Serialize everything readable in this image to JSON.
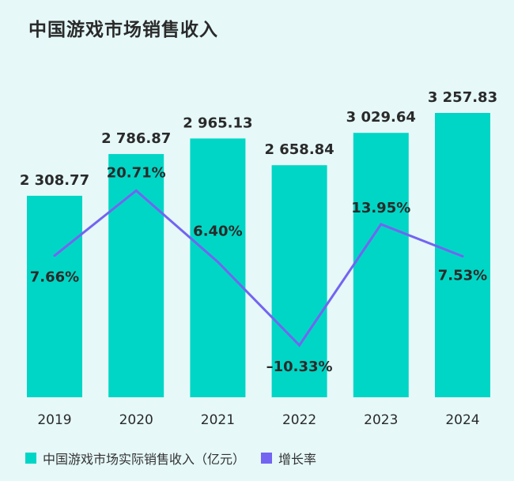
{
  "chart_data": {
    "type": "bar+line",
    "title": "中国游戏市场销售收入",
    "categories": [
      "2019",
      "2020",
      "2021",
      "2022",
      "2023",
      "2024"
    ],
    "series": [
      {
        "name": "中国游戏市场实际销售收入（亿元）",
        "type": "bar",
        "values": [
          2308.77,
          2786.87,
          2965.13,
          2658.84,
          3029.64,
          3257.83
        ],
        "labels": [
          "2 308.77",
          "2 786.87",
          "2 965.13",
          "2 658.84",
          "3 029.64",
          "3 257.83"
        ],
        "color": "#00d6c5"
      },
      {
        "name": "增长率",
        "type": "line",
        "values": [
          7.66,
          20.71,
          6.4,
          -10.33,
          13.95,
          7.53
        ],
        "labels": [
          "7.66%",
          "20.71%",
          "6.40%",
          "–10.33%",
          "13.95%",
          "7.53%"
        ],
        "color": "#7364f2"
      }
    ],
    "legend": "bottom-left",
    "grid": false
  }
}
